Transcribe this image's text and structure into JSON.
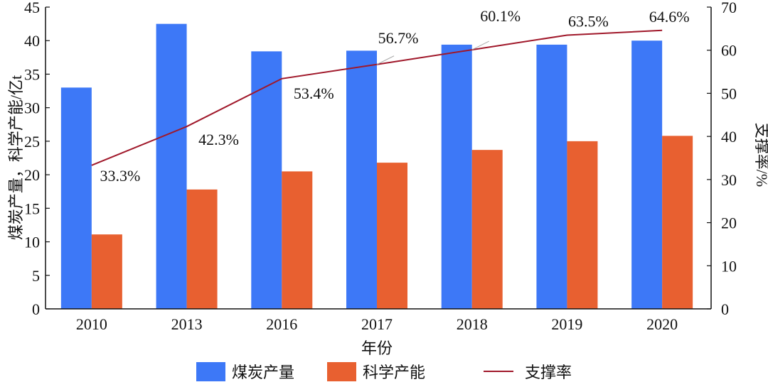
{
  "chart_data": {
    "type": "bar+line",
    "categories": [
      "2010",
      "2013",
      "2016",
      "2017",
      "2018",
      "2019",
      "2020"
    ],
    "xlabel": "年份",
    "ylabel_left": "煤炭产量，科学产能/亿t",
    "ylabel_right": "支撑率/%",
    "ylim_left": [
      0,
      45
    ],
    "yticks_left": [
      0,
      5,
      10,
      15,
      20,
      25,
      30,
      35,
      40,
      45
    ],
    "ylim_right": [
      0,
      70
    ],
    "yticks_right": [
      0,
      10,
      20,
      30,
      40,
      50,
      60,
      70
    ],
    "grid": false,
    "legend_position": "bottom",
    "series": [
      {
        "name": "煤炭产量",
        "type": "bar",
        "axis": "left",
        "color": "#3d78f7",
        "values": [
          33.0,
          42.5,
          38.4,
          38.5,
          39.4,
          39.4,
          40.0
        ]
      },
      {
        "name": "科学产能",
        "type": "bar",
        "axis": "left",
        "color": "#e86030",
        "values": [
          11.1,
          17.8,
          20.5,
          21.8,
          23.7,
          25.0,
          25.8
        ]
      },
      {
        "name": "支撑率",
        "type": "line",
        "axis": "right",
        "color": "#a0182a",
        "values": [
          33.3,
          42.3,
          53.4,
          56.7,
          60.1,
          63.5,
          64.6
        ],
        "labels": [
          "33.3%",
          "42.3%",
          "53.4%",
          "56.7%",
          "60.1%",
          "63.5%",
          "64.6%"
        ]
      }
    ]
  }
}
